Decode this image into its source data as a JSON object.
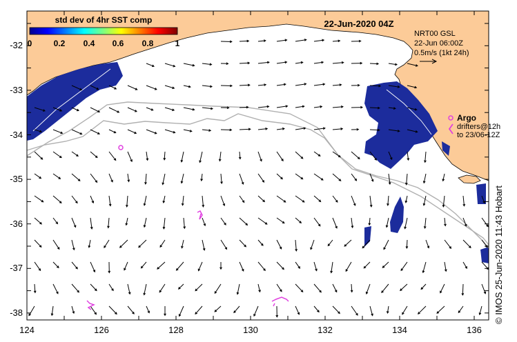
{
  "title": "22-Jun-2020 04Z",
  "colorbar": {
    "label": "std dev of 4hr SST comp",
    "ticks": [
      "0",
      "0.2",
      "0.4",
      "0.6",
      "0.8",
      "1"
    ]
  },
  "current_legend": {
    "line1": "NRT00 GSL",
    "line2": "22-Jun 06:00Z",
    "line3": "0.5m/s (1kt 24h)"
  },
  "argo_legend": {
    "title": "Argo",
    "line1": "drifters@12h",
    "line2": "to 23/06-12Z"
  },
  "axes": {
    "x_ticks": [
      "124",
      "126",
      "128",
      "130",
      "132",
      "134",
      "136"
    ],
    "y_ticks": [
      "-32",
      "-33",
      "-34",
      "-35",
      "-36",
      "-37",
      "-38"
    ],
    "lon_range": [
      124,
      136.5
    ],
    "lat_range": [
      -38.1,
      -31.4
    ]
  },
  "credit": "© IMOS 25-Jun-2020 11:43 Hobart",
  "colors": {
    "land": "#FCCB98",
    "sst_patch": "#1C2C9C",
    "argo": "#E040E0",
    "bathymetry": "#B0B0B0"
  }
}
